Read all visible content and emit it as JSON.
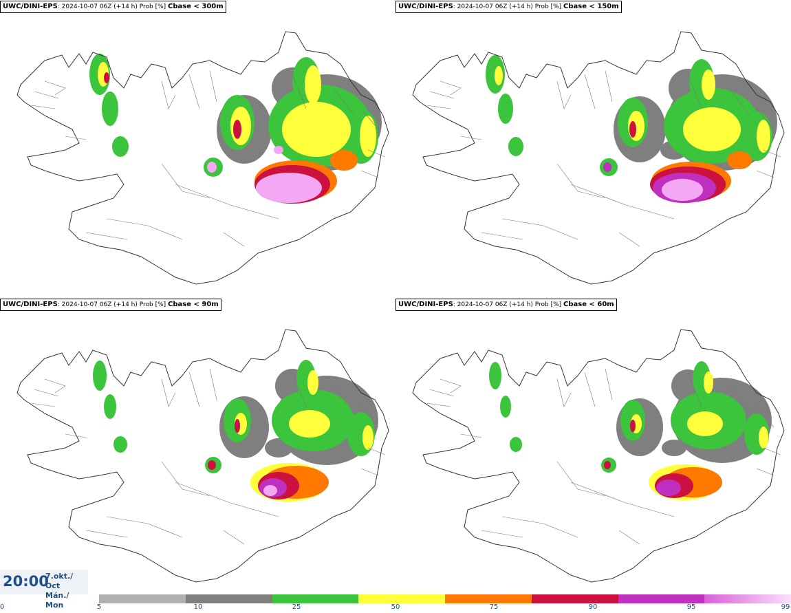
{
  "panels": [
    {
      "model": "UWC/DINI-EPS",
      "run": ": 2024-10-07 06Z (+14 h) Prob [%]",
      "param": "Cbase < 300m"
    },
    {
      "model": "UWC/DINI-EPS",
      "run": ": 2024-10-07 06Z (+14 h) Prob [%]",
      "param": "Cbase < 150m"
    },
    {
      "model": "UWC/DINI-EPS",
      "run": ": 2024-10-07 06Z (+14 h) Prob [%]",
      "param": "Cbase < 90m"
    },
    {
      "model": "UWC/DINI-EPS",
      "run": ": 2024-10-07 06Z (+14 h) Prob [%]",
      "param": "Cbase < 60m"
    }
  ],
  "time": {
    "clock": "20:00",
    "date_line1": "7.okt./ Oct",
    "date_line2": "Mán./ Mon"
  },
  "legend": {
    "ticks": [
      "0",
      "5",
      "10",
      "25",
      "50",
      "75",
      "90",
      "95",
      "99"
    ],
    "colors": [
      "#b0b0b0",
      "#7f7f7f",
      "#3cc43c",
      "#ffff3c",
      "#ff7800",
      "#cc1040",
      "#c030c0",
      "#f4a8f4"
    ]
  }
}
